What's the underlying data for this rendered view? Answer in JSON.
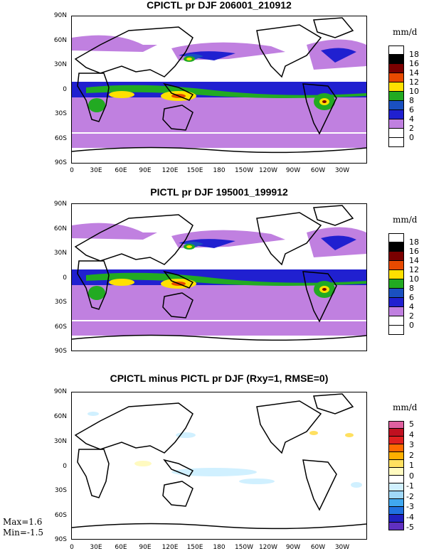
{
  "panels": [
    {
      "title": "CPICTL pr DJF 206001_210912",
      "units": "mm/d",
      "colorbar": {
        "labels": [
          "18",
          "16",
          "14",
          "12",
          "10",
          "8",
          "6",
          "4",
          "2",
          "0"
        ],
        "colors": [
          "#ffffff",
          "#000000",
          "#7a0000",
          "#e84a00",
          "#ffe000",
          "#22aa22",
          "#1a50c0",
          "#2020d0",
          "#c080e0",
          "#ffffff",
          "#ffffff"
        ]
      }
    },
    {
      "title": "PICTL pr DJF 195001_199912",
      "units": "mm/d",
      "colorbar": {
        "labels": [
          "18",
          "16",
          "14",
          "12",
          "10",
          "8",
          "6",
          "4",
          "2",
          "0"
        ],
        "colors": [
          "#ffffff",
          "#000000",
          "#7a0000",
          "#e84a00",
          "#ffe000",
          "#22aa22",
          "#1a50c0",
          "#2020d0",
          "#c080e0",
          "#ffffff",
          "#ffffff"
        ]
      }
    },
    {
      "title": "CPICTL minus PICTL pr DJF (Rxy=1, RMSE=0)",
      "units": "mm/d",
      "colorbar": {
        "labels": [
          "5",
          "4",
          "3",
          "2",
          "1",
          "0",
          "-1",
          "-2",
          "-3",
          "-4",
          "-5"
        ],
        "colors": [
          "#e060a0",
          "#c01020",
          "#e02020",
          "#ff6a00",
          "#ffb000",
          "#ffe060",
          "#fffac0",
          "#ffffff",
          "#d0f0ff",
          "#a0d8f8",
          "#40a8f0",
          "#2070e0",
          "#2020c0",
          "#6030c0"
        ]
      },
      "stats": {
        "max": "Max=1.6",
        "min": "Min=-1.5"
      }
    }
  ],
  "lat_labels": [
    "90N",
    "60N",
    "30N",
    "0",
    "30S",
    "60S",
    "90S"
  ],
  "lon_labels": [
    "0",
    "30E",
    "60E",
    "90E",
    "120E",
    "150E",
    "180",
    "150W",
    "120W",
    "90W",
    "60W",
    "30W"
  ],
  "chart_data": [
    {
      "type": "heatmap",
      "title": "CPICTL pr DJF 206001_210912",
      "units": "mm/d",
      "levels": [
        0,
        2,
        4,
        6,
        8,
        10,
        12,
        14,
        16,
        18
      ],
      "xlabel": "",
      "ylabel": "",
      "x_ticks": [
        "0",
        "30E",
        "60E",
        "90E",
        "120E",
        "150E",
        "180",
        "150W",
        "120W",
        "90W",
        "60W",
        "30W"
      ],
      "y_ticks": [
        "90N",
        "60N",
        "30N",
        "0",
        "30S",
        "60S",
        "90S"
      ],
      "ylim": [
        -90,
        90
      ],
      "xlim": [
        0,
        360
      ]
    },
    {
      "type": "heatmap",
      "title": "PICTL pr DJF 195001_199912",
      "units": "mm/d",
      "levels": [
        0,
        2,
        4,
        6,
        8,
        10,
        12,
        14,
        16,
        18
      ],
      "x_ticks": [
        "0",
        "30E",
        "60E",
        "90E",
        "120E",
        "150E",
        "180",
        "150W",
        "120W",
        "90W",
        "60W",
        "30W"
      ],
      "y_ticks": [
        "90N",
        "60N",
        "30N",
        "0",
        "30S",
        "60S",
        "90S"
      ],
      "ylim": [
        -90,
        90
      ],
      "xlim": [
        0,
        360
      ]
    },
    {
      "type": "heatmap",
      "title": "CPICTL minus PICTL pr DJF (Rxy=1, RMSE=0)",
      "units": "mm/d",
      "levels": [
        -5,
        -4,
        -3,
        -2,
        -1,
        0,
        1,
        2,
        3,
        4,
        5
      ],
      "max": 1.6,
      "min": -1.5,
      "x_ticks": [
        "0",
        "30E",
        "60E",
        "90E",
        "120E",
        "150E",
        "180",
        "150W",
        "120W",
        "90W",
        "60W",
        "30W"
      ],
      "y_ticks": [
        "90N",
        "60N",
        "30N",
        "0",
        "30S",
        "60S",
        "90S"
      ],
      "ylim": [
        -90,
        90
      ],
      "xlim": [
        0,
        360
      ]
    }
  ]
}
